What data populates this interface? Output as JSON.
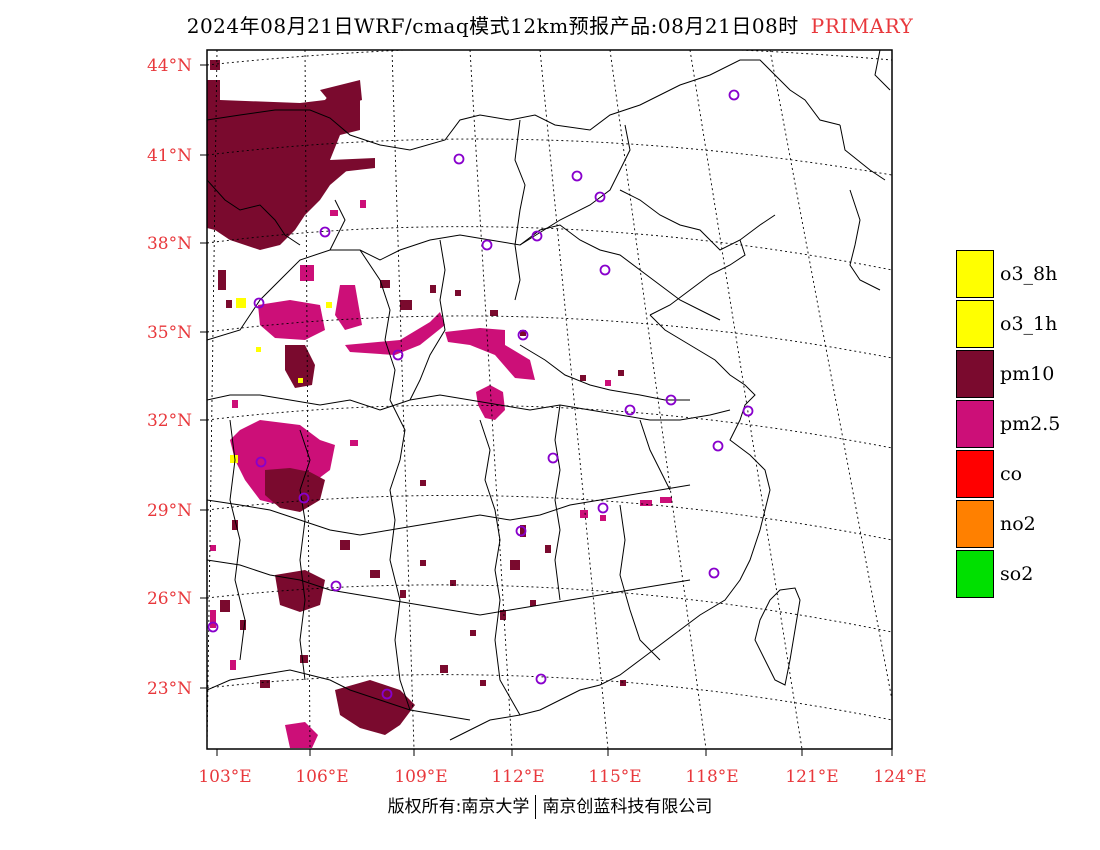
{
  "header": {
    "title": "2024年08月21日WRF/cmaq模式12km预报产品:08月21日08时",
    "tag": "PRIMARY"
  },
  "map": {
    "lat_labels": [
      "44°N",
      "41°N",
      "38°N",
      "35°N",
      "32°N",
      "29°N",
      "26°N",
      "23°N"
    ],
    "lon_labels": [
      "103°E",
      "106°E",
      "109°E",
      "112°E",
      "115°E",
      "118°E",
      "121°E",
      "124°E"
    ],
    "colors": {
      "pm10": "#7a0a2e",
      "pm25": "#cc0f78",
      "o3": "#ffff00",
      "station_marker": "#8800cc"
    }
  },
  "legend": {
    "items": [
      {
        "label": "o3_8h",
        "color": "#ffff00"
      },
      {
        "label": "o3_1h",
        "color": "#ffff00"
      },
      {
        "label": "pm10",
        "color": "#7a0a2e"
      },
      {
        "label": "pm2.5",
        "color": "#cc0f78"
      },
      {
        "label": "co",
        "color": "#ff0000"
      },
      {
        "label": "no2",
        "color": "#ff8000"
      },
      {
        "label": "so2",
        "color": "#00e000"
      }
    ]
  },
  "footer": {
    "left": "版权所有:南京大学",
    "right": "南京创蓝科技有限公司"
  }
}
